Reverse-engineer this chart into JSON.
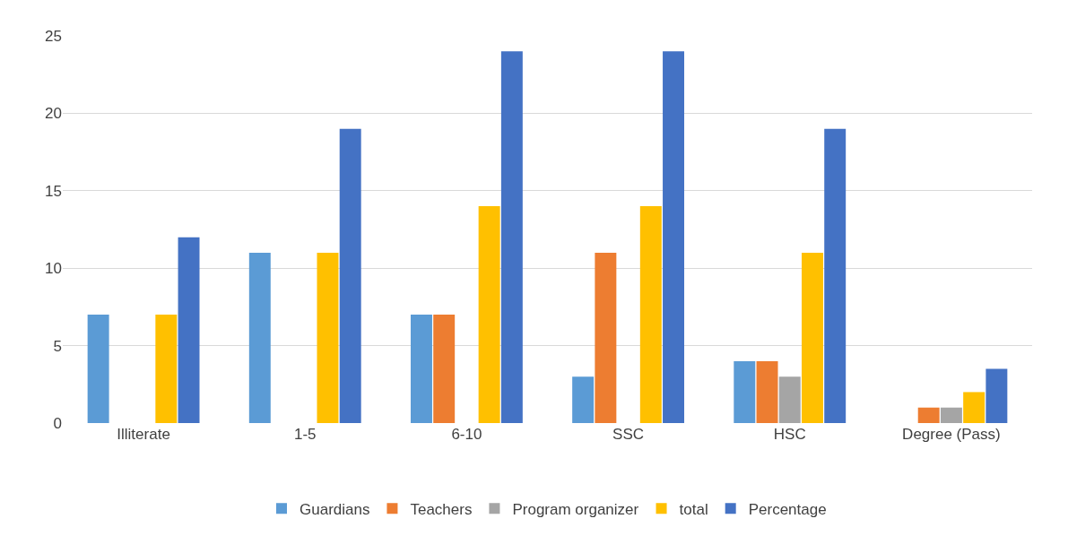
{
  "chart_data": {
    "type": "bar",
    "categories": [
      "Illiterate",
      "1-5",
      "6-10",
      "SSC",
      "HSC",
      "Degree (Pass)"
    ],
    "series": [
      {
        "name": "Guardians",
        "color": "#5b9bd5",
        "values": [
          7,
          11,
          7,
          3,
          4,
          0
        ]
      },
      {
        "name": "Teachers",
        "color": "#ed7d31",
        "values": [
          0,
          0,
          7,
          11,
          4,
          1
        ]
      },
      {
        "name": "Program organizer",
        "color": "#a5a5a5",
        "values": [
          0,
          0,
          0,
          0,
          3,
          1
        ]
      },
      {
        "name": "total",
        "color": "#ffc000",
        "values": [
          7,
          11,
          14,
          14,
          11,
          2
        ]
      },
      {
        "name": "Percentage",
        "color": "#4472c4",
        "values": [
          12,
          19,
          24,
          24,
          19,
          3.5
        ]
      }
    ],
    "ylim": [
      0,
      25
    ],
    "yticks": [
      0,
      5,
      10,
      15,
      20,
      25
    ],
    "grid": "y",
    "legend": "bottom"
  }
}
